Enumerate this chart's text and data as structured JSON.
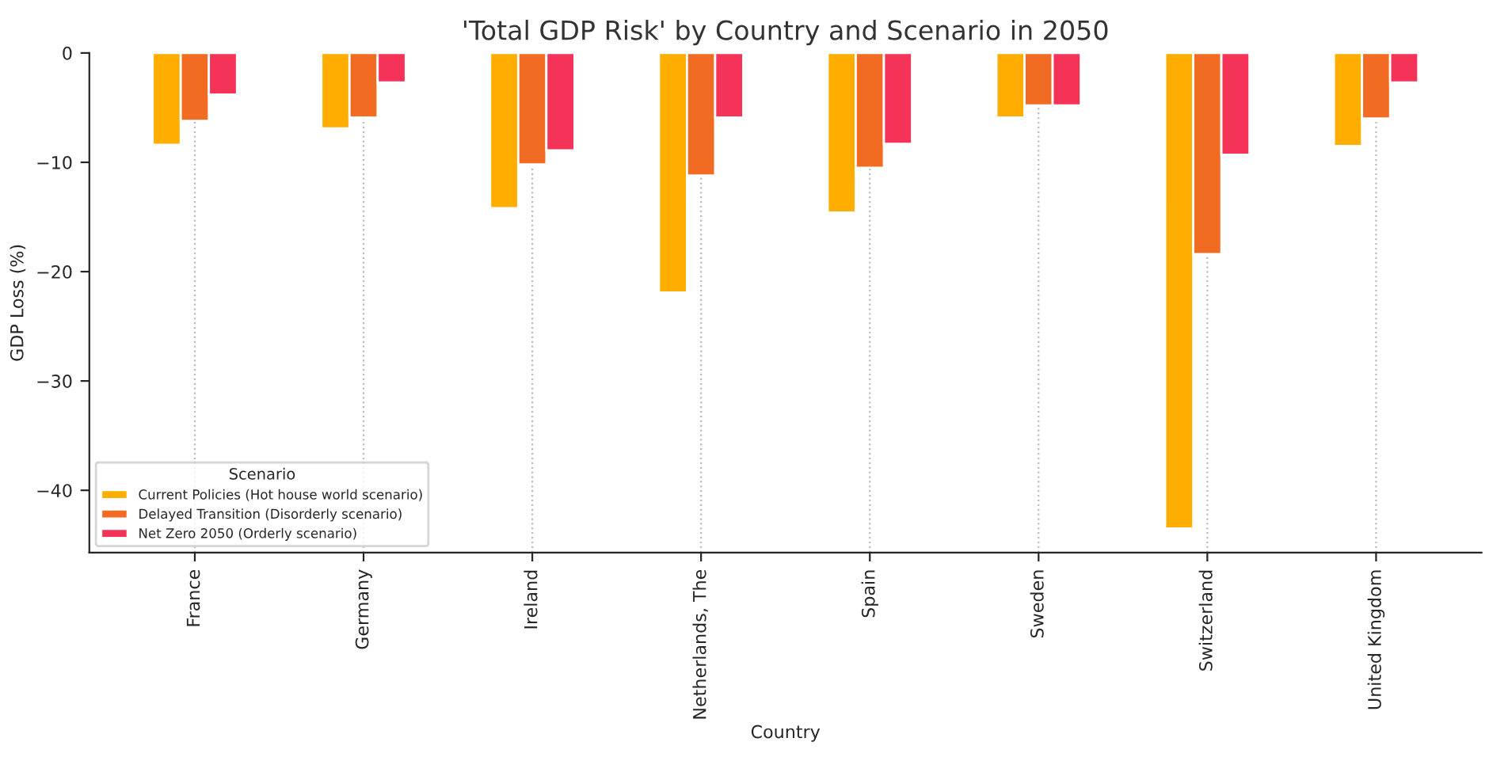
{
  "chart_data": {
    "type": "bar",
    "title": "'Total GDP Risk' by Country and Scenario in 2050",
    "xlabel": "Country",
    "ylabel": "GDP Loss (%)",
    "legend_title": "Scenario",
    "categories": [
      "France",
      "Germany",
      "Ireland",
      "Netherlands, The",
      "Spain",
      "Sweden",
      "Switzerland",
      "United Kingdom"
    ],
    "series": [
      {
        "name": "Current Policies (Hot house world scenario)",
        "color": "#ffae00",
        "values": [
          -8.4,
          -6.9,
          -14.2,
          -21.9,
          -14.6,
          -5.9,
          -43.5,
          -8.5
        ]
      },
      {
        "name": "Delayed Transition (Disorderly scenario)",
        "color": "#f26b22",
        "values": [
          -6.2,
          -5.9,
          -10.2,
          -11.2,
          -10.5,
          -4.8,
          -18.4,
          -6.0
        ]
      },
      {
        "name": "Net Zero 2050 (Orderly scenario)",
        "color": "#f53258",
        "values": [
          -3.8,
          -2.7,
          -8.9,
          -5.9,
          -8.3,
          -4.8,
          -9.3,
          -2.7
        ]
      }
    ],
    "ylim": [
      -45.7,
      0
    ],
    "yticks": [
      0,
      -10,
      -20,
      -30,
      -40
    ],
    "grid": "x",
    "legend": "bottom left"
  }
}
